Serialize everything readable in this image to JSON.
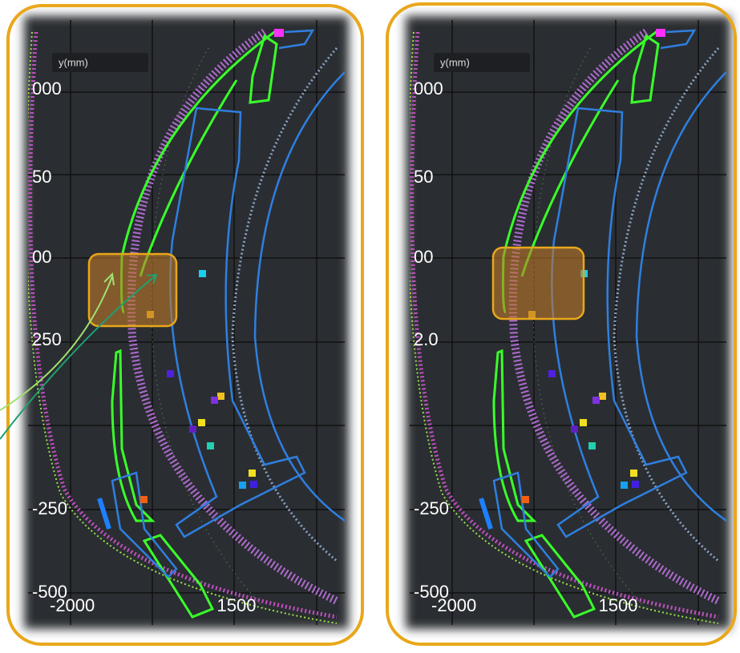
{
  "panels": [
    {
      "axis_title": "y(mm)",
      "y_labels": [
        "000",
        "50",
        "00",
        "250",
        "-250",
        "-500"
      ],
      "x_labels": [
        "-2000",
        "1500"
      ]
    },
    {
      "axis_title": "y(mm)",
      "y_labels": [
        "000",
        "50",
        "00",
        "2.0",
        "-250",
        "-500"
      ],
      "x_labels": [
        "-2000",
        "1500"
      ]
    }
  ]
}
